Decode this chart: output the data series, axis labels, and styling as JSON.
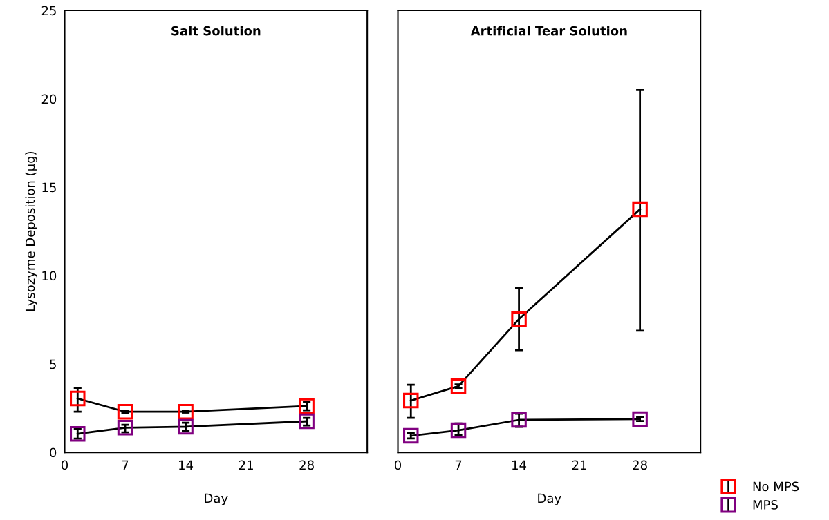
{
  "chart_data": [
    {
      "type": "line",
      "title": "Salt Solution",
      "xlabel": "Day",
      "ylabel": "Lysozyme Deposition (µg)",
      "xlim": [
        0,
        35
      ],
      "xticks": [
        0,
        7,
        14,
        21,
        28
      ],
      "ylim": [
        0,
        25
      ],
      "yticks": [
        0,
        5,
        10,
        15,
        20,
        25
      ],
      "marker": "square",
      "grid": false,
      "legend": false,
      "series": [
        {
          "color": "#ff0000",
          "x": [
            1.5,
            7,
            14,
            28
          ],
          "values": [
            3.05,
            2.3,
            2.3,
            2.62
          ],
          "errors": [
            [
              2.3,
              3.63
            ],
            [
              2.25,
              2.35
            ],
            [
              2.25,
              2.35
            ],
            [
              2.38,
              2.85
            ]
          ]
        },
        {
          "color": "#800080",
          "x": [
            1.5,
            7,
            14,
            28
          ],
          "values": [
            1.05,
            1.4,
            1.45,
            1.76
          ],
          "errors": [
            [
              0.78,
              1.33
            ],
            [
              1.13,
              1.56
            ],
            [
              1.21,
              1.68
            ],
            [
              1.52,
              1.95
            ]
          ]
        }
      ]
    },
    {
      "type": "line",
      "title": "Artificial Tear Solution",
      "xlabel": "Day",
      "xlim": [
        0,
        35
      ],
      "xticks": [
        0,
        7,
        14,
        21,
        28
      ],
      "ylim": [
        0,
        25
      ],
      "tick_labels": "x",
      "marker": "square",
      "grid": false,
      "legend": "bottom right",
      "series": [
        {
          "name": "No MPS",
          "color": "#ff0000",
          "x": [
            1.5,
            7,
            14,
            28
          ],
          "values": [
            2.93,
            3.75,
            7.54,
            13.75
          ],
          "errors": [
            [
              1.95,
              3.83
            ],
            [
              3.65,
              3.85
            ],
            [
              5.78,
              9.3
            ],
            [
              6.88,
              20.5
            ]
          ]
        },
        {
          "name": "MPS",
          "color": "#800080",
          "x": [
            1.5,
            7,
            14,
            28
          ],
          "values": [
            0.94,
            1.25,
            1.84,
            1.88
          ],
          "errors": [
            [
              0.79,
              1.09
            ],
            [
              0.98,
              1.64
            ],
            [
              1.45,
              2.19
            ],
            [
              1.78,
              1.98
            ]
          ]
        }
      ]
    }
  ]
}
